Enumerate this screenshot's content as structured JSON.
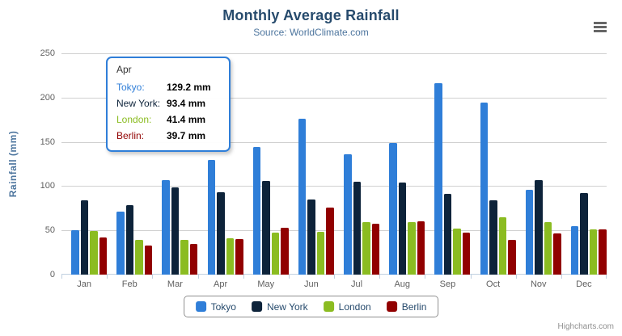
{
  "chart_data": {
    "type": "bar",
    "title": "Monthly Average Rainfall",
    "subtitle": "Source: WorldClimate.com",
    "xlabel": "",
    "ylabel": "Rainfall (mm)",
    "ylim": [
      0,
      250
    ],
    "yticks": [
      0,
      50,
      100,
      150,
      200,
      250
    ],
    "grid": true,
    "legend_position": "bottom",
    "categories": [
      "Jan",
      "Feb",
      "Mar",
      "Apr",
      "May",
      "Jun",
      "Jul",
      "Aug",
      "Sep",
      "Oct",
      "Nov",
      "Dec"
    ],
    "series": [
      {
        "name": "Tokyo",
        "color": "#2f7ed8",
        "values": [
          49.9,
          71.5,
          106.4,
          129.2,
          144.0,
          176.0,
          135.6,
          148.5,
          216.4,
          194.1,
          95.6,
          54.4
        ]
      },
      {
        "name": "New York",
        "color": "#0d233a",
        "values": [
          83.6,
          78.8,
          98.5,
          93.4,
          106.0,
          84.5,
          105.0,
          104.3,
          91.2,
          83.5,
          106.6,
          92.3
        ]
      },
      {
        "name": "London",
        "color": "#8bbc21",
        "values": [
          48.9,
          38.8,
          39.3,
          41.4,
          47.0,
          48.3,
          59.0,
          59.6,
          52.4,
          65.2,
          59.3,
          51.2
        ]
      },
      {
        "name": "Berlin",
        "color": "#910000",
        "values": [
          42.4,
          33.2,
          34.5,
          39.7,
          52.6,
          75.5,
          57.4,
          60.4,
          47.6,
          39.1,
          46.8,
          51.1
        ]
      }
    ]
  },
  "tooltip": {
    "header": "Apr",
    "border_color": "#2f7ed8",
    "rows": [
      {
        "series": "Tokyo",
        "label": "Tokyo:",
        "value": "129.2 mm",
        "color": "#2f7ed8"
      },
      {
        "series": "New York",
        "label": "New York:",
        "value": "93.4 mm",
        "color": "#0d233a"
      },
      {
        "series": "London",
        "label": "London:",
        "value": "41.4 mm",
        "color": "#8bbc21"
      },
      {
        "series": "Berlin",
        "label": "Berlin:",
        "value": "39.7 mm",
        "color": "#910000"
      }
    ]
  },
  "credits": {
    "label": "Highcharts.com"
  },
  "theme_colors": {
    "title": "#274b6d",
    "subtitle": "#4d759e",
    "axis_labels": "#606060",
    "axis_line": "#c0d0e0",
    "gridline": "#d0d0d0",
    "legend_border": "#909090",
    "legend_text": "#274b6d",
    "credits": "#909090",
    "menu_icon": "#666666"
  }
}
